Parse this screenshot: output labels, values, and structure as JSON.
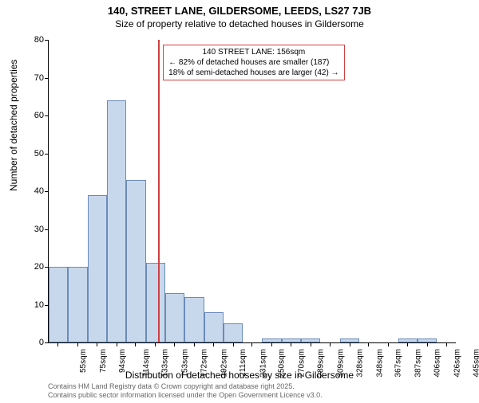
{
  "title_main": "140, STREET LANE, GILDERSOME, LEEDS, LS27 7JB",
  "title_sub": "Size of property relative to detached houses in Gildersome",
  "y_axis_label": "Number of detached properties",
  "x_axis_label": "Distribution of detached houses by size in Gildersome",
  "footnote_line1": "Contains HM Land Registry data © Crown copyright and database right 2025.",
  "footnote_line2": "Contains public sector information licensed under the Open Government Licence v3.0.",
  "annotation": {
    "title": "140 STREET LANE: 156sqm",
    "line1": "← 82% of detached houses are smaller (187)",
    "line2": "18% of semi-detached houses are larger (42) →",
    "border_color": "#d04040"
  },
  "refline": {
    "x_value": 156,
    "color": "#d04040"
  },
  "chart": {
    "type": "histogram",
    "background_color": "#ffffff",
    "bar_fill": "#c8d8ec",
    "bar_border": "#6a8bb8",
    "x_min": 46,
    "x_max": 455,
    "y_min": 0,
    "y_max": 80,
    "y_ticks": [
      0,
      10,
      20,
      30,
      40,
      50,
      60,
      70,
      80
    ],
    "x_ticks": [
      55,
      75,
      94,
      114,
      133,
      153,
      172,
      192,
      211,
      231,
      250,
      270,
      289,
      309,
      328,
      348,
      367,
      387,
      406,
      426,
      445
    ],
    "x_tick_suffix": "sqm",
    "bin_width": 19.5,
    "bins": [
      {
        "x": 46,
        "count": 20
      },
      {
        "x": 65.5,
        "count": 20
      },
      {
        "x": 85,
        "count": 39
      },
      {
        "x": 104.5,
        "count": 64
      },
      {
        "x": 124,
        "count": 43
      },
      {
        "x": 143.5,
        "count": 21
      },
      {
        "x": 163,
        "count": 13
      },
      {
        "x": 182.5,
        "count": 12
      },
      {
        "x": 202,
        "count": 8
      },
      {
        "x": 221.5,
        "count": 5
      },
      {
        "x": 241,
        "count": 0
      },
      {
        "x": 260.5,
        "count": 1
      },
      {
        "x": 280,
        "count": 1
      },
      {
        "x": 299.5,
        "count": 1
      },
      {
        "x": 319,
        "count": 0
      },
      {
        "x": 338.5,
        "count": 1
      },
      {
        "x": 358,
        "count": 0
      },
      {
        "x": 377.5,
        "count": 0
      },
      {
        "x": 397,
        "count": 1
      },
      {
        "x": 416.5,
        "count": 1
      },
      {
        "x": 436,
        "count": 0
      }
    ]
  }
}
